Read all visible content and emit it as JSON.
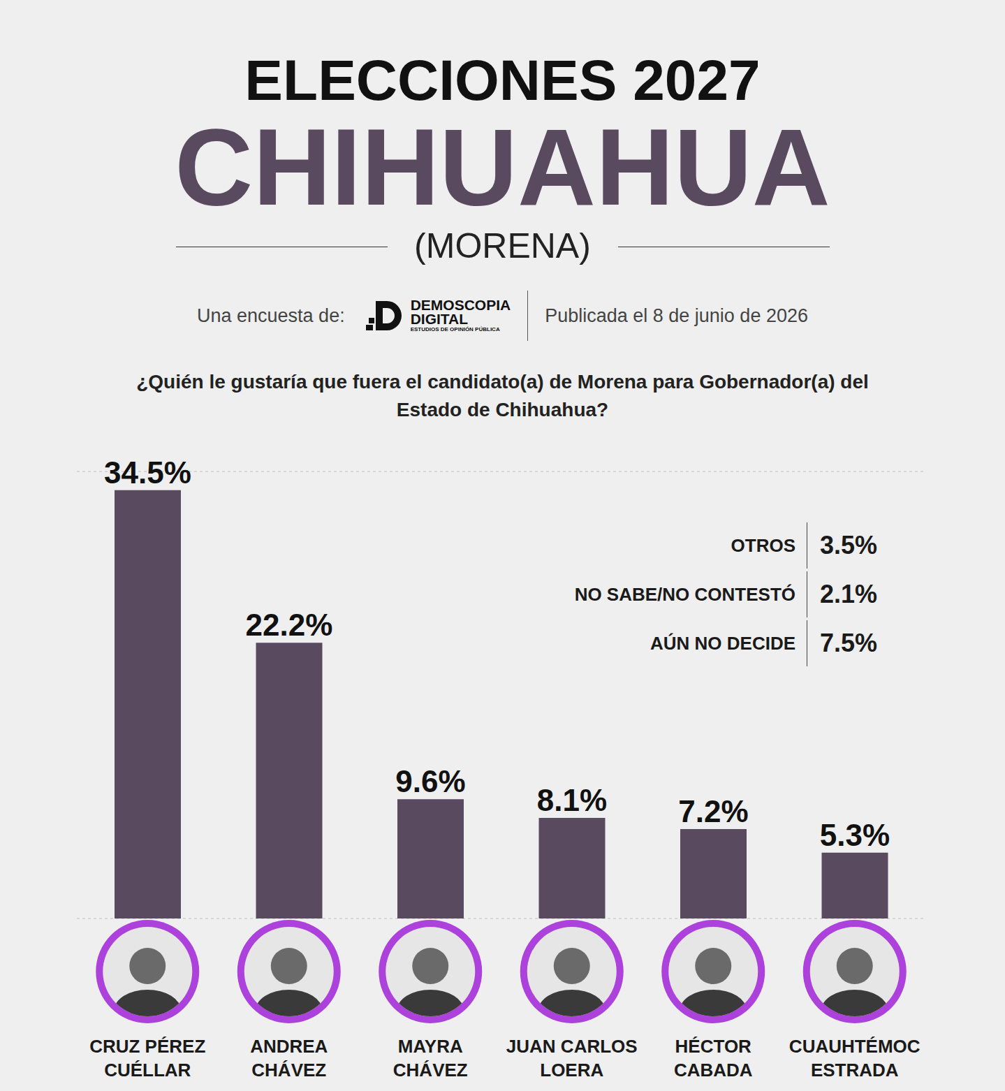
{
  "chart_data": {
    "type": "bar",
    "title": "ELECCIONES 2027",
    "subtitle": "CHIHUAHUA",
    "party": "(MORENA)",
    "source": {
      "prefix": "Una encuesta de:",
      "name": [
        "DEMOSCOPIA",
        "DIGITAL"
      ],
      "tagline": "ESTUDIOS DE OPINIÓN PÚBLICA",
      "published": "Publicada el 8 de junio de 2026"
    },
    "question": "¿Quién le gustaría que fuera el candidato(a) de Morena para Gobernador(a) del Estado de Chihuahua?",
    "categories": [
      "CRUZ PÉREZ CUÉLLAR",
      "ANDREA CHÁVEZ",
      "MAYRA CHÁVEZ",
      "JUAN CARLOS LOERA",
      "HÉCTOR CABADA",
      "CUAUHTÉMOC ESTRADA"
    ],
    "values": [
      34.5,
      22.2,
      9.6,
      8.1,
      7.2,
      5.3
    ],
    "value_labels": [
      "34.5%",
      "22.2%",
      "9.6%",
      "8.1%",
      "7.2%",
      "5.3%"
    ],
    "color": "#5a4a5f",
    "data_labels": true,
    "ylim": [
      0,
      36
    ],
    "yticks": [
      0,
      9,
      18,
      27,
      36
    ],
    "grid": true,
    "tick_labels": "x",
    "other_responses": [
      {
        "label": "OTROS",
        "value": "3.5%"
      },
      {
        "label": "NO SABE/NO CONTESTÓ",
        "value": "2.1%"
      },
      {
        "label": "AÚN NO DECIDE",
        "value": "7.5%"
      }
    ]
  }
}
